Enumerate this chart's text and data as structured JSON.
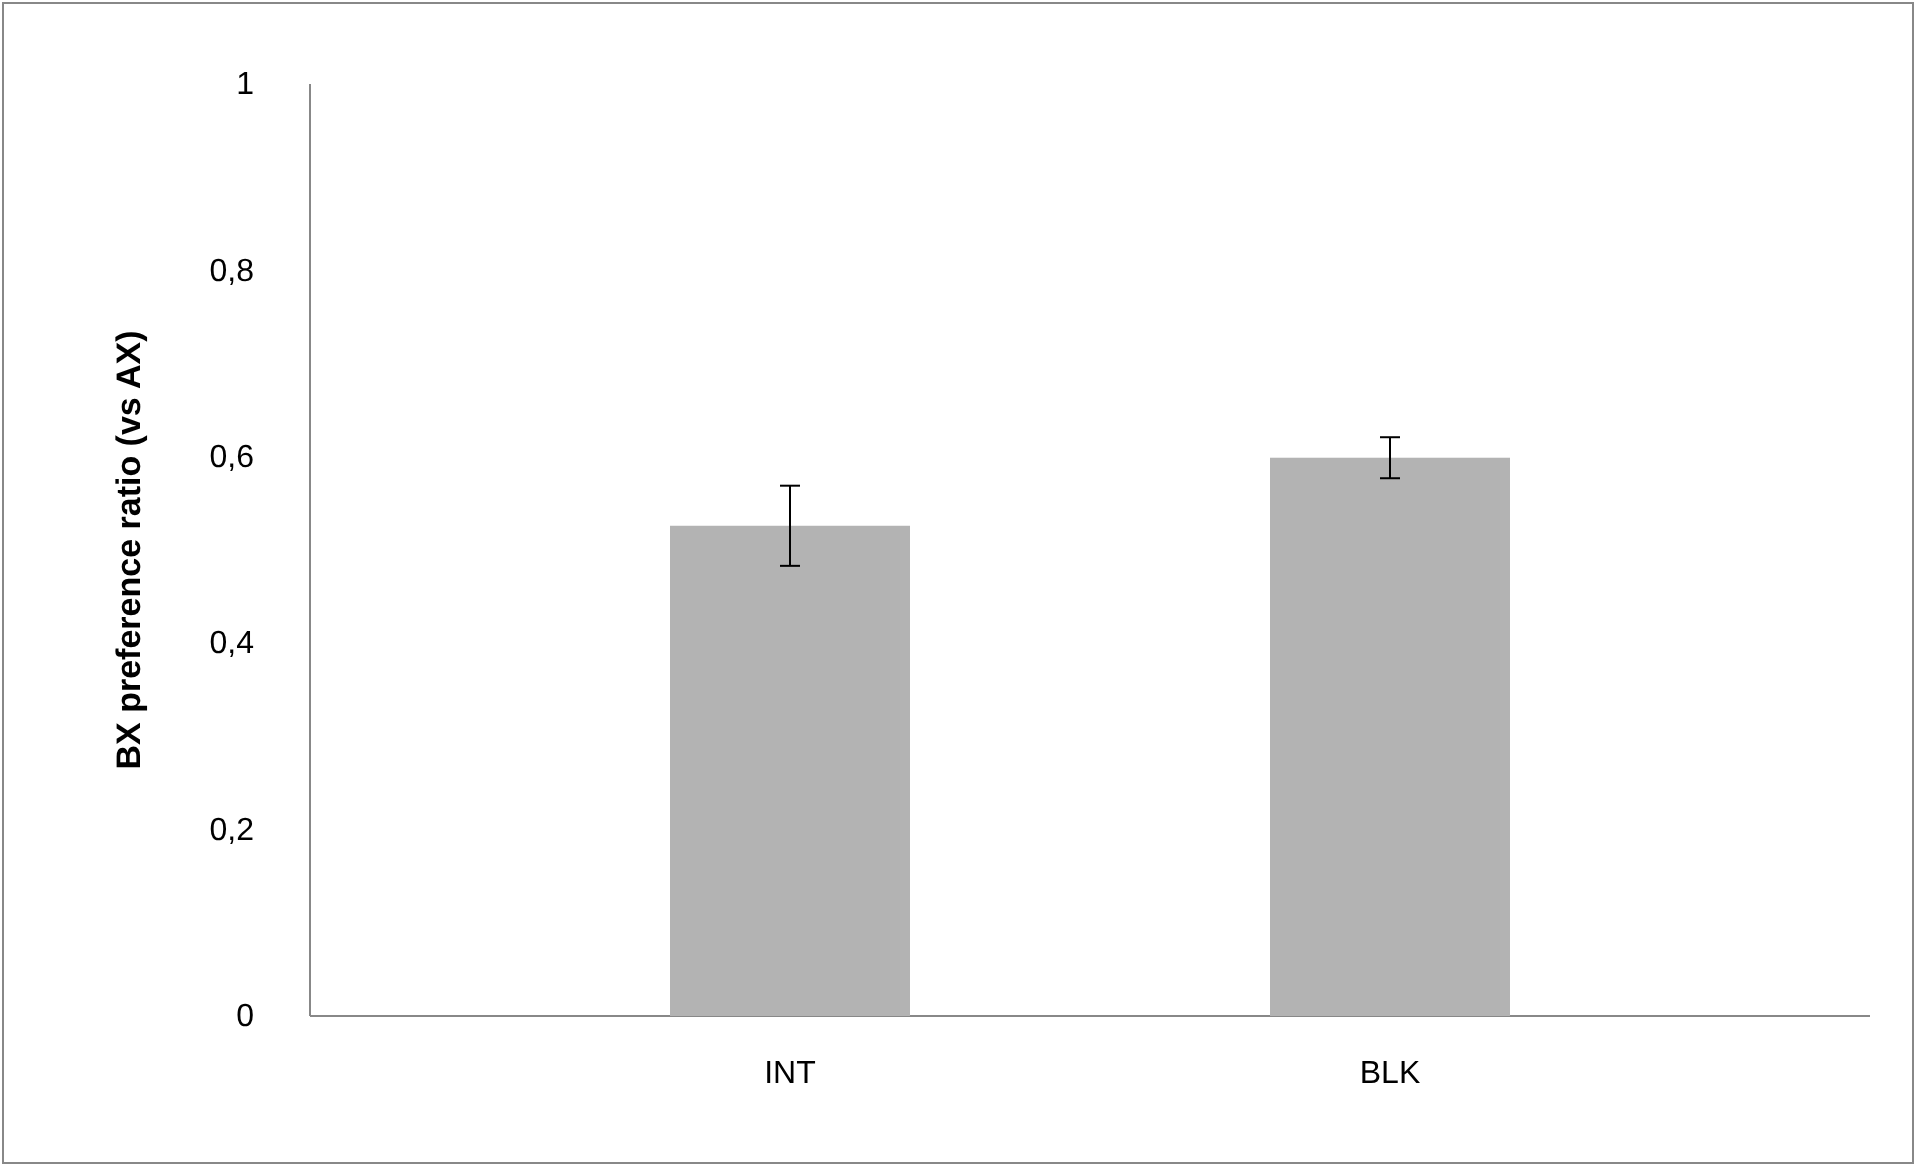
{
  "chart_data": {
    "type": "bar",
    "ylabel": "BX preference ratio (vs AX)",
    "categories": [
      "INT",
      "BLK"
    ],
    "values": [
      0.526,
      0.599
    ],
    "errors": [
      0.043,
      0.022
    ],
    "color": "#b3b3b3",
    "ylim": [
      0,
      1
    ],
    "yticks": [
      0,
      {
        "value": 0.2,
        "label": "0,2"
      },
      {
        "value": 0.4,
        "label": "0,4"
      },
      {
        "value": 0.6,
        "label": "0,6"
      },
      {
        "value": 0.8,
        "label": "0,8"
      },
      1
    ],
    "grid": false,
    "legend": false
  }
}
